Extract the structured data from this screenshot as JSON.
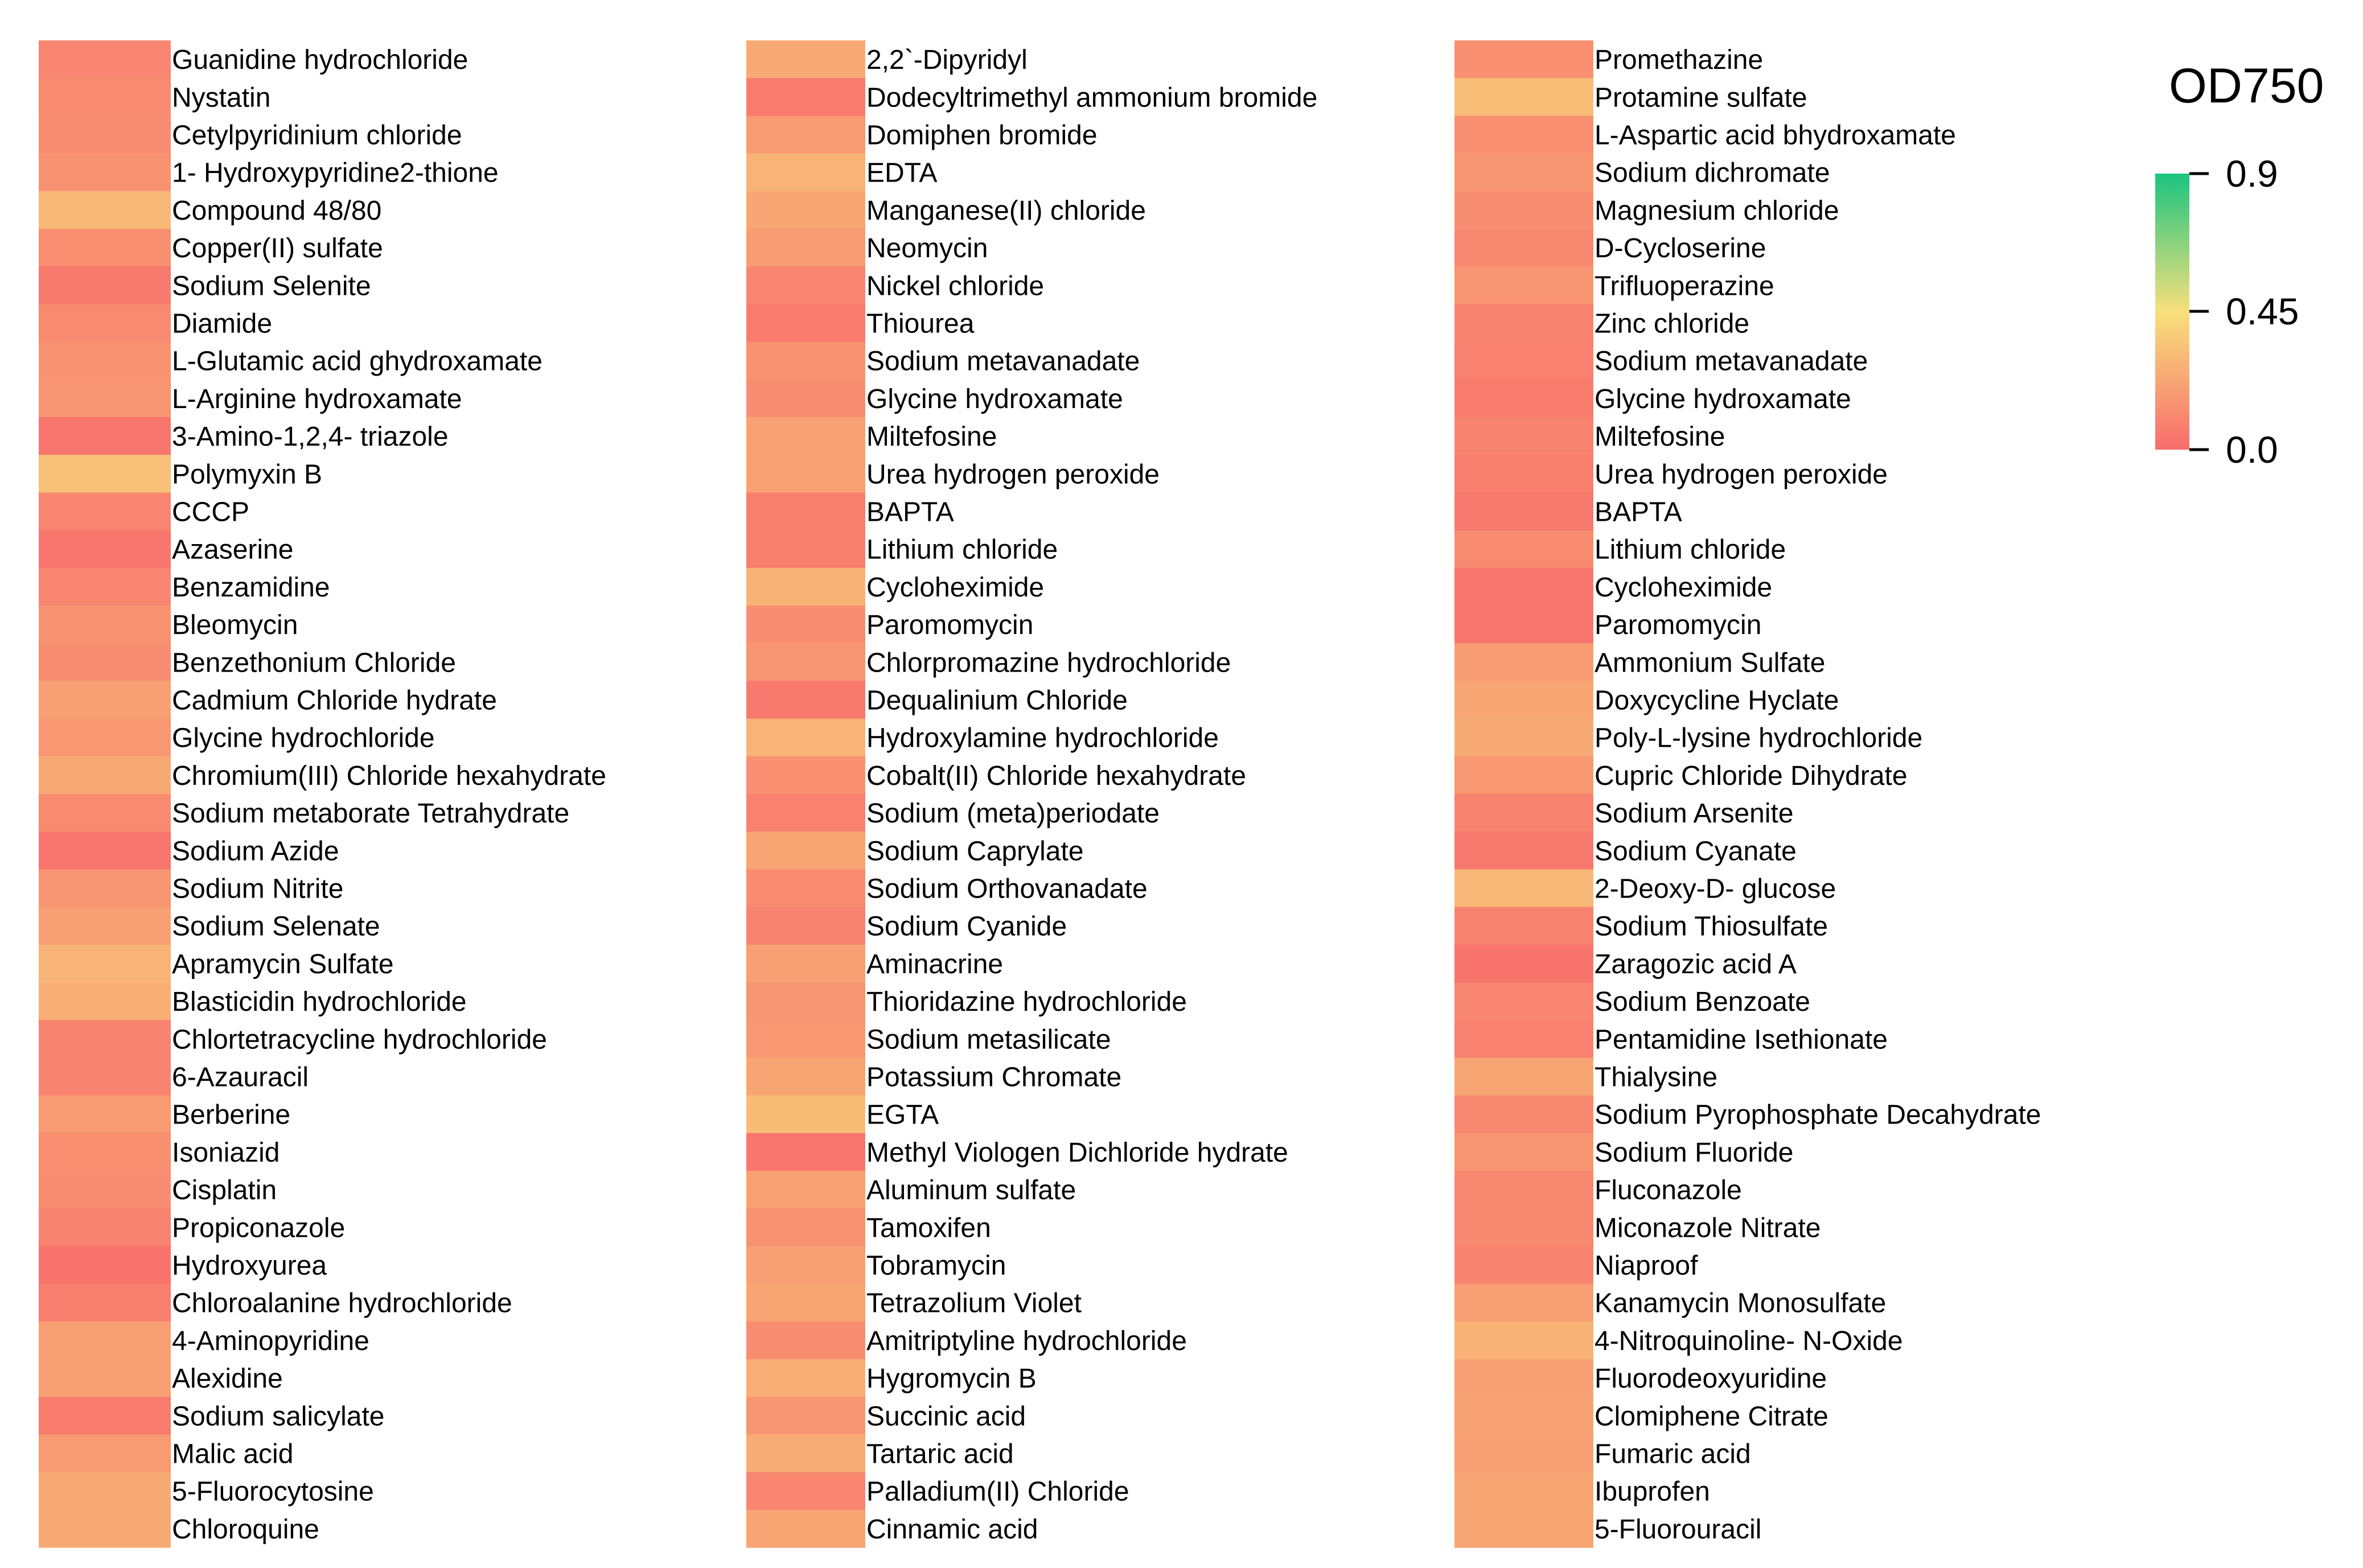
{
  "chart_data": {
    "type": "heatmap",
    "title": "OD750",
    "colorbar": {
      "title": "OD750",
      "ticks": [
        "0.9",
        "0.45",
        "0.0"
      ],
      "range": [
        0.0,
        0.9
      ],
      "colors": [
        "#f86c6c",
        "#f8e07c",
        "#1ac47f"
      ]
    },
    "columns": [
      {
        "rows": [
          {
            "label": "Guanidine hydrochloride",
            "value": 0.1
          },
          {
            "label": "Nystatin",
            "value": 0.12
          },
          {
            "label": "Cetylpyridinium chloride",
            "value": 0.13
          },
          {
            "label": "1- Hydroxypyridine2-thione",
            "value": 0.15
          },
          {
            "label": "Compound 48/80",
            "value": 0.3
          },
          {
            "label": "Copper(II) sulfate",
            "value": 0.14
          },
          {
            "label": "Sodium Selenite",
            "value": 0.05
          },
          {
            "label": "Diamide",
            "value": 0.12
          },
          {
            "label": "L-Glutamic acid ghydroxamate",
            "value": 0.15
          },
          {
            "label": "L-Arginine hydroxamate",
            "value": 0.16
          },
          {
            "label": "3-Amino-1,2,4- triazole",
            "value": 0.04
          },
          {
            "label": "Polymyxin B",
            "value": 0.33
          },
          {
            "label": "CCCP",
            "value": 0.1
          },
          {
            "label": "Azaserine",
            "value": 0.04
          },
          {
            "label": "Benzamidine",
            "value": 0.1
          },
          {
            "label": "Bleomycin",
            "value": 0.15
          },
          {
            "label": "Benzethonium Chloride",
            "value": 0.13
          },
          {
            "label": "Cadmium Chloride hydrate",
            "value": 0.2
          },
          {
            "label": "Glycine hydrochloride",
            "value": 0.17
          },
          {
            "label": "Chromium(III)  Chloride hexahydrate",
            "value": 0.24
          },
          {
            "label": "Sodium metaborate Tetrahydrate",
            "value": 0.12
          },
          {
            "label": "Sodium Azide",
            "value": 0.04
          },
          {
            "label": "Sodium Nitrite",
            "value": 0.16
          },
          {
            "label": "Sodium Selenate",
            "value": 0.2
          },
          {
            "label": "Apramycin Sulfate",
            "value": 0.28
          },
          {
            "label": "Blasticidin hydrochloride",
            "value": 0.26
          },
          {
            "label": "Chlortetracycline hydrochloride",
            "value": 0.09
          },
          {
            "label": "6-Azauracil",
            "value": 0.09
          },
          {
            "label": "Berberine",
            "value": 0.18
          },
          {
            "label": "Isoniazid",
            "value": 0.14
          },
          {
            "label": "Cisplatin",
            "value": 0.13
          },
          {
            "label": "Propiconazole",
            "value": 0.09
          },
          {
            "label": "Hydroxyurea",
            "value": 0.03
          },
          {
            "label": "Chloroalanine hydrochloride",
            "value": 0.07
          },
          {
            "label": "4-Aminopyridine",
            "value": 0.2
          },
          {
            "label": "Alexidine",
            "value": 0.2
          },
          {
            "label": "Sodium salicylate",
            "value": 0.06
          },
          {
            "label": "Malic acid",
            "value": 0.18
          },
          {
            "label": "5-Fluorocytosine",
            "value": 0.24
          },
          {
            "label": "Chloroquine",
            "value": 0.24
          }
        ]
      },
      {
        "rows": [
          {
            "label": "2,2`-Dipyridyl",
            "value": 0.24
          },
          {
            "label": "Dodecyltrimethyl ammonium bromide",
            "value": 0.06
          },
          {
            "label": "Domiphen bromide",
            "value": 0.18
          },
          {
            "label": "EDTA",
            "value": 0.28
          },
          {
            "label": "Manganese(II) chloride",
            "value": 0.23
          },
          {
            "label": "Neomycin",
            "value": 0.19
          },
          {
            "label": "Nickel chloride",
            "value": 0.1
          },
          {
            "label": "Thiourea",
            "value": 0.06
          },
          {
            "label": "Sodium metavanadate",
            "value": 0.15
          },
          {
            "label": "Glycine hydroxamate",
            "value": 0.13
          },
          {
            "label": "Miltefosine",
            "value": 0.21
          },
          {
            "label": "Urea hydrogen peroxide",
            "value": 0.21
          },
          {
            "label": "BAPTA",
            "value": 0.07
          },
          {
            "label": "Lithium chloride",
            "value": 0.07
          },
          {
            "label": "Cycloheximide",
            "value": 0.27
          },
          {
            "label": "Paromomycin",
            "value": 0.13
          },
          {
            "label": "Chlorpromazine hydrochloride",
            "value": 0.16
          },
          {
            "label": "Dequalinium Chloride",
            "value": 0.05
          },
          {
            "label": "Hydroxylamine hydrochloride",
            "value": 0.28
          },
          {
            "label": "Cobalt(II) Chloride hexahydrate",
            "value": 0.14
          },
          {
            "label": "Sodium (meta)periodate",
            "value": 0.08
          },
          {
            "label": "Sodium Caprylate",
            "value": 0.22
          },
          {
            "label": "Sodium Orthovanadate",
            "value": 0.12
          },
          {
            "label": "Sodium Cyanide",
            "value": 0.09
          },
          {
            "label": "Aminacrine",
            "value": 0.2
          },
          {
            "label": "Thioridazine hydrochloride",
            "value": 0.16
          },
          {
            "label": "Sodium metasilicate",
            "value": 0.17
          },
          {
            "label": "Potassium Chromate",
            "value": 0.22
          },
          {
            "label": "EGTA",
            "value": 0.31
          },
          {
            "label": "Methyl Viologen Dichloride hydrate",
            "value": 0.04
          },
          {
            "label": "Aluminum sulfate",
            "value": 0.21
          },
          {
            "label": "Tamoxifen",
            "value": 0.15
          },
          {
            "label": "Tobramycin",
            "value": 0.2
          },
          {
            "label": "Tetrazolium Violet",
            "value": 0.22
          },
          {
            "label": "Amitriptyline hydrochloride",
            "value": 0.13
          },
          {
            "label": "Hygromycin B",
            "value": 0.26
          },
          {
            "label": "Succinic acid",
            "value": 0.16
          },
          {
            "label": "Tartaric acid",
            "value": 0.25
          },
          {
            "label": "Palladium(II) Chloride",
            "value": 0.1
          },
          {
            "label": "Cinnamic acid",
            "value": 0.22
          }
        ]
      },
      {
        "rows": [
          {
            "label": "Promethazine",
            "value": 0.14
          },
          {
            "label": "Protamine sulfate",
            "value": 0.32
          },
          {
            "label": "L-Aspartic acid bhydroxamate",
            "value": 0.14
          },
          {
            "label": "Sodium dichromate",
            "value": 0.16
          },
          {
            "label": "Magnesium chloride",
            "value": 0.13
          },
          {
            "label": "D-Cycloserine",
            "value": 0.11
          },
          {
            "label": "Trifluoperazine",
            "value": 0.16
          },
          {
            "label": "Zinc chloride",
            "value": 0.09
          },
          {
            "label": "Sodium metavanadate",
            "value": 0.08
          },
          {
            "label": "Glycine hydroxamate",
            "value": 0.06
          },
          {
            "label": "Miltefosine",
            "value": 0.09
          },
          {
            "label": "Urea hydrogen peroxide",
            "value": 0.07
          },
          {
            "label": "BAPTA",
            "value": 0.05
          },
          {
            "label": "Lithium chloride",
            "value": 0.12
          },
          {
            "label": "Cycloheximide",
            "value": 0.04
          },
          {
            "label": "Paromomycin",
            "value": 0.04
          },
          {
            "label": "Ammonium Sulfate",
            "value": 0.19
          },
          {
            "label": "Doxycycline Hyclate",
            "value": 0.23
          },
          {
            "label": "Poly-L-lysine hydrochloride",
            "value": 0.24
          },
          {
            "label": "Cupric Chloride Dihydrate",
            "value": 0.17
          },
          {
            "label": "Sodium Arsenite",
            "value": 0.09
          },
          {
            "label": "Sodium Cyanate",
            "value": 0.05
          },
          {
            "label": "2-Deoxy-D- glucose",
            "value": 0.29
          },
          {
            "label": "Sodium Thiosulfate",
            "value": 0.09
          },
          {
            "label": "Zaragozic acid A",
            "value": 0.03
          },
          {
            "label": "Sodium Benzoate",
            "value": 0.1
          },
          {
            "label": "Pentamidine Isethionate",
            "value": 0.08
          },
          {
            "label": "Thialysine",
            "value": 0.22
          },
          {
            "label": "Sodium Pyrophosphate Decahydrate",
            "value": 0.11
          },
          {
            "label": "Sodium Fluoride",
            "value": 0.16
          },
          {
            "label": "Fluconazole",
            "value": 0.11
          },
          {
            "label": "Miconazole Nitrate",
            "value": 0.11
          },
          {
            "label": "Niaproof",
            "value": 0.09
          },
          {
            "label": "Kanamycin Monosulfate",
            "value": 0.2
          },
          {
            "label": "4-Nitroquinoline- N-Oxide",
            "value": 0.27
          },
          {
            "label": "Fluorodeoxyuridine",
            "value": 0.2
          },
          {
            "label": "Clomiphene Citrate",
            "value": 0.21
          },
          {
            "label": "Fumaric acid",
            "value": 0.2
          },
          {
            "label": "Ibuprofen",
            "value": 0.22
          },
          {
            "label": "5-Fluorouracil",
            "value": 0.22
          }
        ]
      }
    ]
  }
}
